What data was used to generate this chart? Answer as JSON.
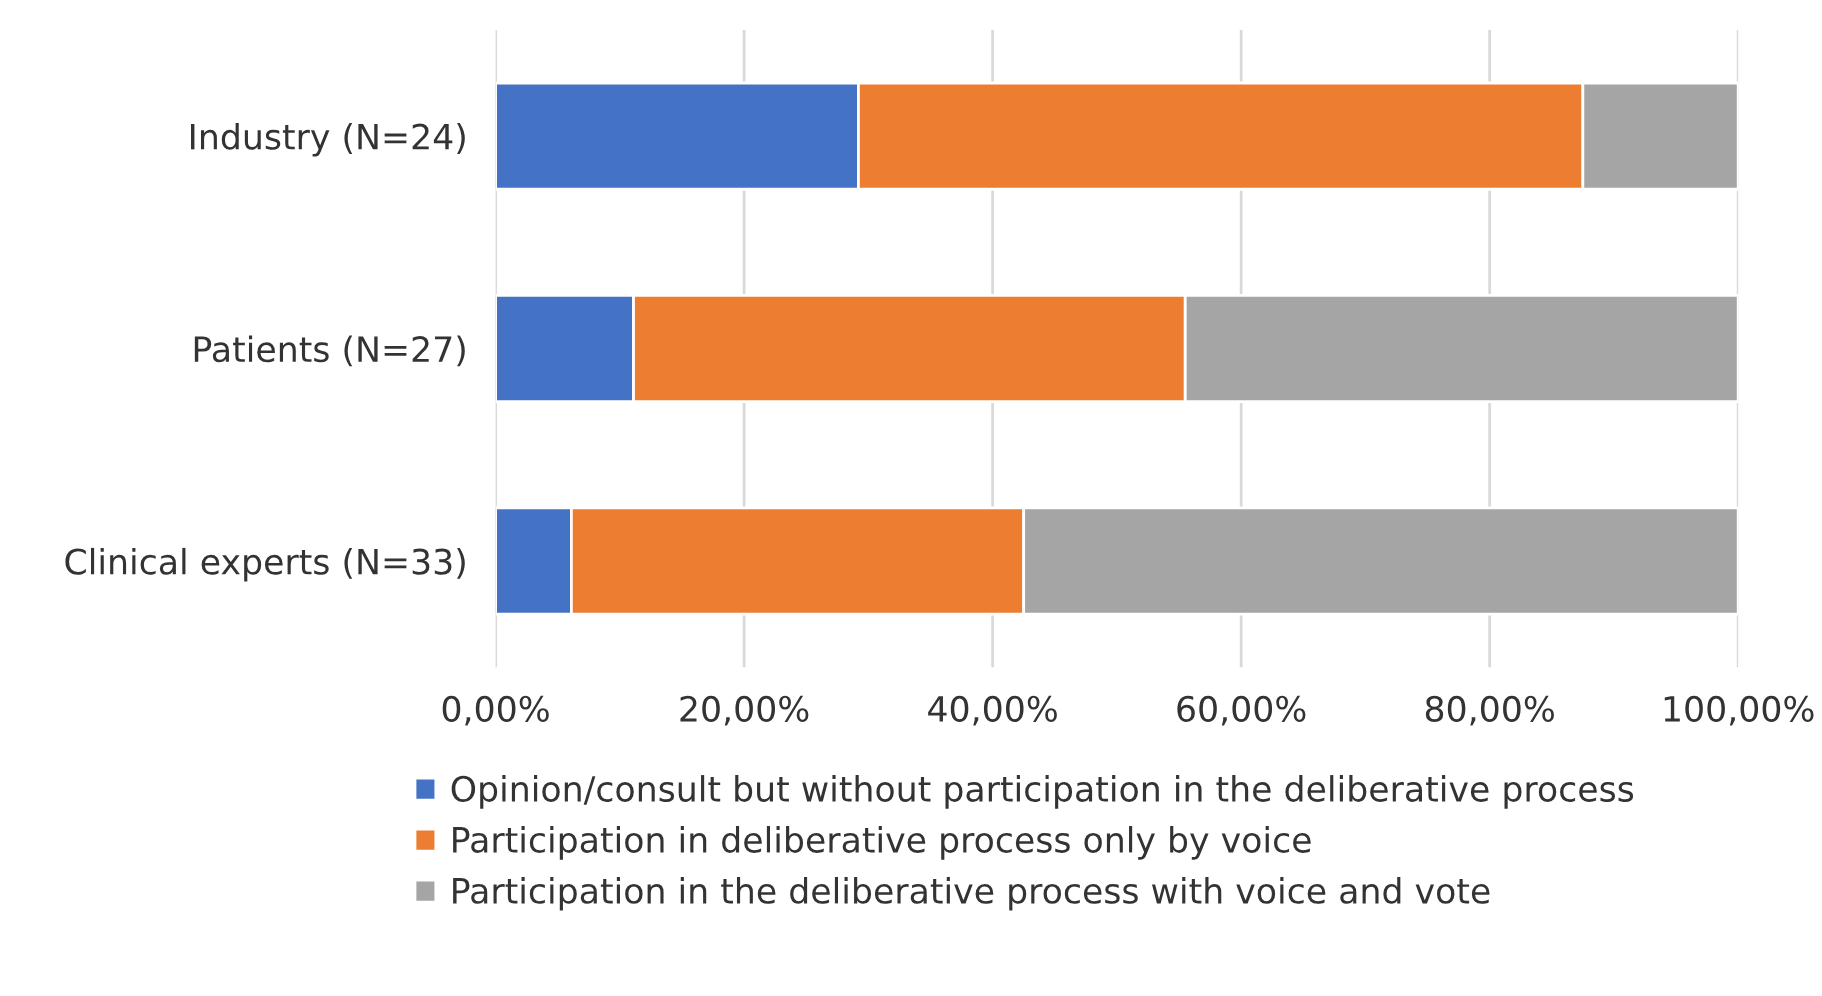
{
  "chart_data": {
    "type": "bar",
    "orientation": "horizontal",
    "stacked": true,
    "categories": [
      "Industry (N=24)",
      "Patients (N=27)",
      "Clinical experts (N=33)"
    ],
    "series": [
      {
        "name": "Opinion/consult but without participation in the deliberative process",
        "color": "#4472c4",
        "values": [
          29.2,
          11.1,
          6.1
        ]
      },
      {
        "name": "Participation in deliberative process only by voice",
        "color": "#ed7d31",
        "values": [
          58.3,
          44.4,
          36.4
        ]
      },
      {
        "name": "Participation in the deliberative process with voice and vote",
        "color": "#a5a5a5",
        "values": [
          12.5,
          44.5,
          57.5
        ]
      }
    ],
    "xlim": [
      0,
      100
    ],
    "xticks": [
      {
        "value": 0,
        "label": "0,00%"
      },
      {
        "value": 20,
        "label": "20,00%"
      },
      {
        "value": 40,
        "label": "40,00%"
      },
      {
        "value": 60,
        "label": "60,00%"
      },
      {
        "value": 80,
        "label": "80,00%"
      },
      {
        "value": 100,
        "label": "100,00%"
      }
    ],
    "grid": "x",
    "legend": "bottom"
  }
}
